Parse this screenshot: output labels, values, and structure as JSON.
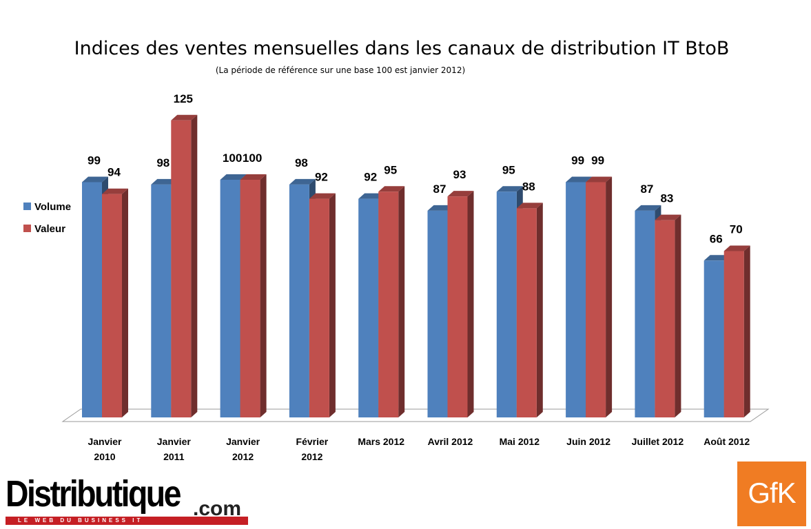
{
  "chart_data": {
    "type": "bar",
    "title": "Indices des ventes mensuelles dans les canaux de distribution IT BtoB",
    "subtitle": "(La période de référence sur une base 100 est janvier 2012)",
    "categories": [
      [
        "Janvier",
        "2010"
      ],
      [
        "Janvier",
        "2011"
      ],
      [
        "Janvier",
        "2012"
      ],
      [
        "Février",
        "2012"
      ],
      [
        "Mars 2012"
      ],
      [
        "Avril 2012"
      ],
      [
        "Mai 2012"
      ],
      [
        "Juin 2012"
      ],
      [
        "Juillet 2012"
      ],
      [
        "Août 2012"
      ]
    ],
    "series": [
      {
        "name": "Volume",
        "color": "#4f81bd",
        "values": [
          99,
          98,
          100,
          98,
          92,
          87,
          95,
          99,
          87,
          66
        ]
      },
      {
        "name": "Valeur",
        "color": "#c0504d",
        "values": [
          94,
          125,
          100,
          92,
          95,
          93,
          88,
          99,
          83,
          70
        ]
      }
    ],
    "legend_position": "left",
    "grid": false,
    "style": "3d-clustered-columns",
    "ylim": [
      0,
      125
    ]
  },
  "logos": {
    "distributique": {
      "text": "Distributique",
      "suffix": ".com",
      "tagline": "LE WEB DU BUSINESS IT"
    },
    "gfk": {
      "text": "GfK",
      "color": "#f07c23"
    }
  }
}
